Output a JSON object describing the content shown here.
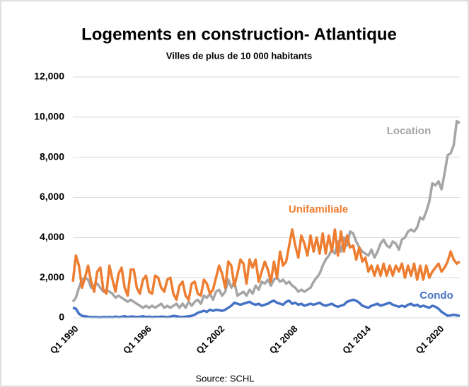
{
  "chart_data": {
    "type": "line",
    "title": "Logements en construction- Atlantique",
    "subtitle": "Villes de plus de 10 000 habitants",
    "source": "Source: SCHL",
    "categories": [
      "Q1 1990",
      null,
      null,
      null,
      null,
      null,
      null,
      null,
      null,
      null,
      null,
      null,
      null,
      null,
      null,
      null,
      null,
      null,
      null,
      null,
      null,
      null,
      null,
      null,
      "Q1 1996",
      null,
      null,
      null,
      null,
      null,
      null,
      null,
      null,
      null,
      null,
      null,
      null,
      null,
      null,
      null,
      null,
      null,
      null,
      null,
      null,
      null,
      null,
      null,
      "Q1 2002",
      null,
      null,
      null,
      null,
      null,
      null,
      null,
      null,
      null,
      null,
      null,
      null,
      null,
      null,
      null,
      null,
      null,
      null,
      null,
      null,
      null,
      null,
      null,
      "Q1 2008",
      null,
      null,
      null,
      null,
      null,
      null,
      null,
      null,
      null,
      null,
      null,
      null,
      null,
      null,
      null,
      null,
      null,
      null,
      null,
      null,
      null,
      null,
      null,
      "Q1 2014",
      null,
      null,
      null,
      null,
      null,
      null,
      null,
      null,
      null,
      null,
      null,
      null,
      null,
      null,
      null,
      null,
      null,
      null,
      null,
      null,
      null,
      null,
      null,
      "Q1 2020",
      null,
      null,
      null,
      null,
      null,
      null,
      null
    ],
    "series": [
      {
        "name": "Location",
        "color": "#a5a5a5",
        "values": [
          800,
          1000,
          1500,
          1900,
          2000,
          1900,
          1500,
          1600,
          1700,
          1500,
          1300,
          1400,
          1300,
          1200,
          1000,
          1100,
          1000,
          900,
          800,
          900,
          800,
          700,
          600,
          500,
          600,
          500,
          600,
          500,
          600,
          700,
          500,
          600,
          500,
          600,
          700,
          500,
          700,
          500,
          800,
          600,
          800,
          900,
          700,
          1100,
          1000,
          1200,
          900,
          1300,
          1400,
          1100,
          1300,
          1900,
          1500,
          1800,
          1100,
          1200,
          1300,
          1100,
          1400,
          1200,
          1600,
          1400,
          1800,
          1700,
          1900,
          1600,
          1900,
          2000,
          1800,
          1900,
          1700,
          1800,
          1600,
          1500,
          1300,
          1400,
          1300,
          1400,
          1500,
          1800,
          2000,
          2200,
          2600,
          2900,
          3100,
          3400,
          3200,
          3800,
          3300,
          4000,
          3600,
          4300,
          4200,
          3800,
          3500,
          3300,
          3200,
          3100,
          3400,
          3000,
          3300,
          3700,
          3900,
          3600,
          3500,
          3800,
          3700,
          3400,
          3900,
          4000,
          4300,
          4400,
          4300,
          4500,
          5000,
          4900,
          5300,
          5800,
          6700,
          6600,
          6800,
          6400,
          7200,
          8100,
          8200,
          8600,
          9800,
          9700
        ]
      },
      {
        "name": "Unifamiliale",
        "color": "#ed7d31",
        "values": [
          1800,
          3100,
          2600,
          1500,
          2000,
          2600,
          1800,
          1300,
          2300,
          2500,
          1400,
          1200,
          2600,
          1900,
          1300,
          2200,
          2500,
          1500,
          1100,
          2400,
          2400,
          1500,
          1200,
          1900,
          2100,
          1300,
          1200,
          2100,
          2000,
          1500,
          1300,
          1900,
          2000,
          1200,
          900,
          1600,
          1800,
          1100,
          900,
          1700,
          1800,
          1200,
          1100,
          1900,
          1700,
          1200,
          1400,
          2000,
          2600,
          2200,
          1500,
          2800,
          2600,
          1600,
          2200,
          2900,
          2700,
          1700,
          2900,
          2500,
          2900,
          1800,
          2300,
          2800,
          2400,
          1800,
          2800,
          2000,
          3300,
          2600,
          2800,
          3600,
          4400,
          3600,
          3000,
          4100,
          3700,
          3100,
          4100,
          3300,
          4000,
          3200,
          4200,
          3200,
          4100,
          3300,
          4400,
          3100,
          4300,
          3300,
          4100,
          3500,
          3600,
          2900,
          3500,
          2800,
          3000,
          2300,
          2600,
          2100,
          2600,
          2100,
          2700,
          2100,
          2600,
          2100,
          2600,
          2300,
          2700,
          2000,
          2600,
          2100,
          2700,
          1900,
          2600,
          1900,
          2600,
          2000,
          2300,
          2500,
          2700,
          2300,
          2500,
          2800,
          3300,
          2900,
          2700,
          2800
        ]
      },
      {
        "name": "Condo",
        "color": "#4472c4",
        "values": [
          500,
          450,
          200,
          100,
          80,
          50,
          30,
          40,
          30,
          20,
          40,
          30,
          40,
          20,
          60,
          30,
          50,
          80,
          40,
          60,
          60,
          40,
          50,
          80,
          40,
          60,
          30,
          50,
          40,
          60,
          50,
          30,
          60,
          100,
          80,
          50,
          40,
          60,
          80,
          100,
          150,
          250,
          300,
          350,
          300,
          400,
          350,
          400,
          380,
          350,
          400,
          500,
          600,
          750,
          700,
          650,
          700,
          750,
          800,
          700,
          650,
          700,
          600,
          650,
          700,
          800,
          850,
          750,
          700,
          650,
          800,
          850,
          700,
          750,
          650,
          700,
          600,
          650,
          700,
          650,
          700,
          750,
          650,
          600,
          650,
          700,
          600,
          550,
          600,
          650,
          800,
          850,
          900,
          850,
          750,
          600,
          550,
          500,
          600,
          650,
          700,
          600,
          650,
          700,
          750,
          650,
          600,
          550,
          600,
          550,
          650,
          700,
          600,
          650,
          550,
          600,
          550,
          500,
          600,
          550,
          450,
          300,
          200,
          100,
          120,
          150,
          120,
          100
        ]
      }
    ],
    "ylim": [
      0,
      12000
    ],
    "yticks": [
      0,
      {
        "value": 2000,
        "label": "2,000"
      },
      {
        "value": 4000,
        "label": "4,000"
      },
      {
        "value": 6000,
        "label": "6,000"
      },
      {
        "value": 8000,
        "label": "8,000"
      },
      {
        "value": 10000,
        "label": "10,000"
      },
      {
        "value": 12000,
        "label": "12,000"
      }
    ],
    "grid": true
  }
}
